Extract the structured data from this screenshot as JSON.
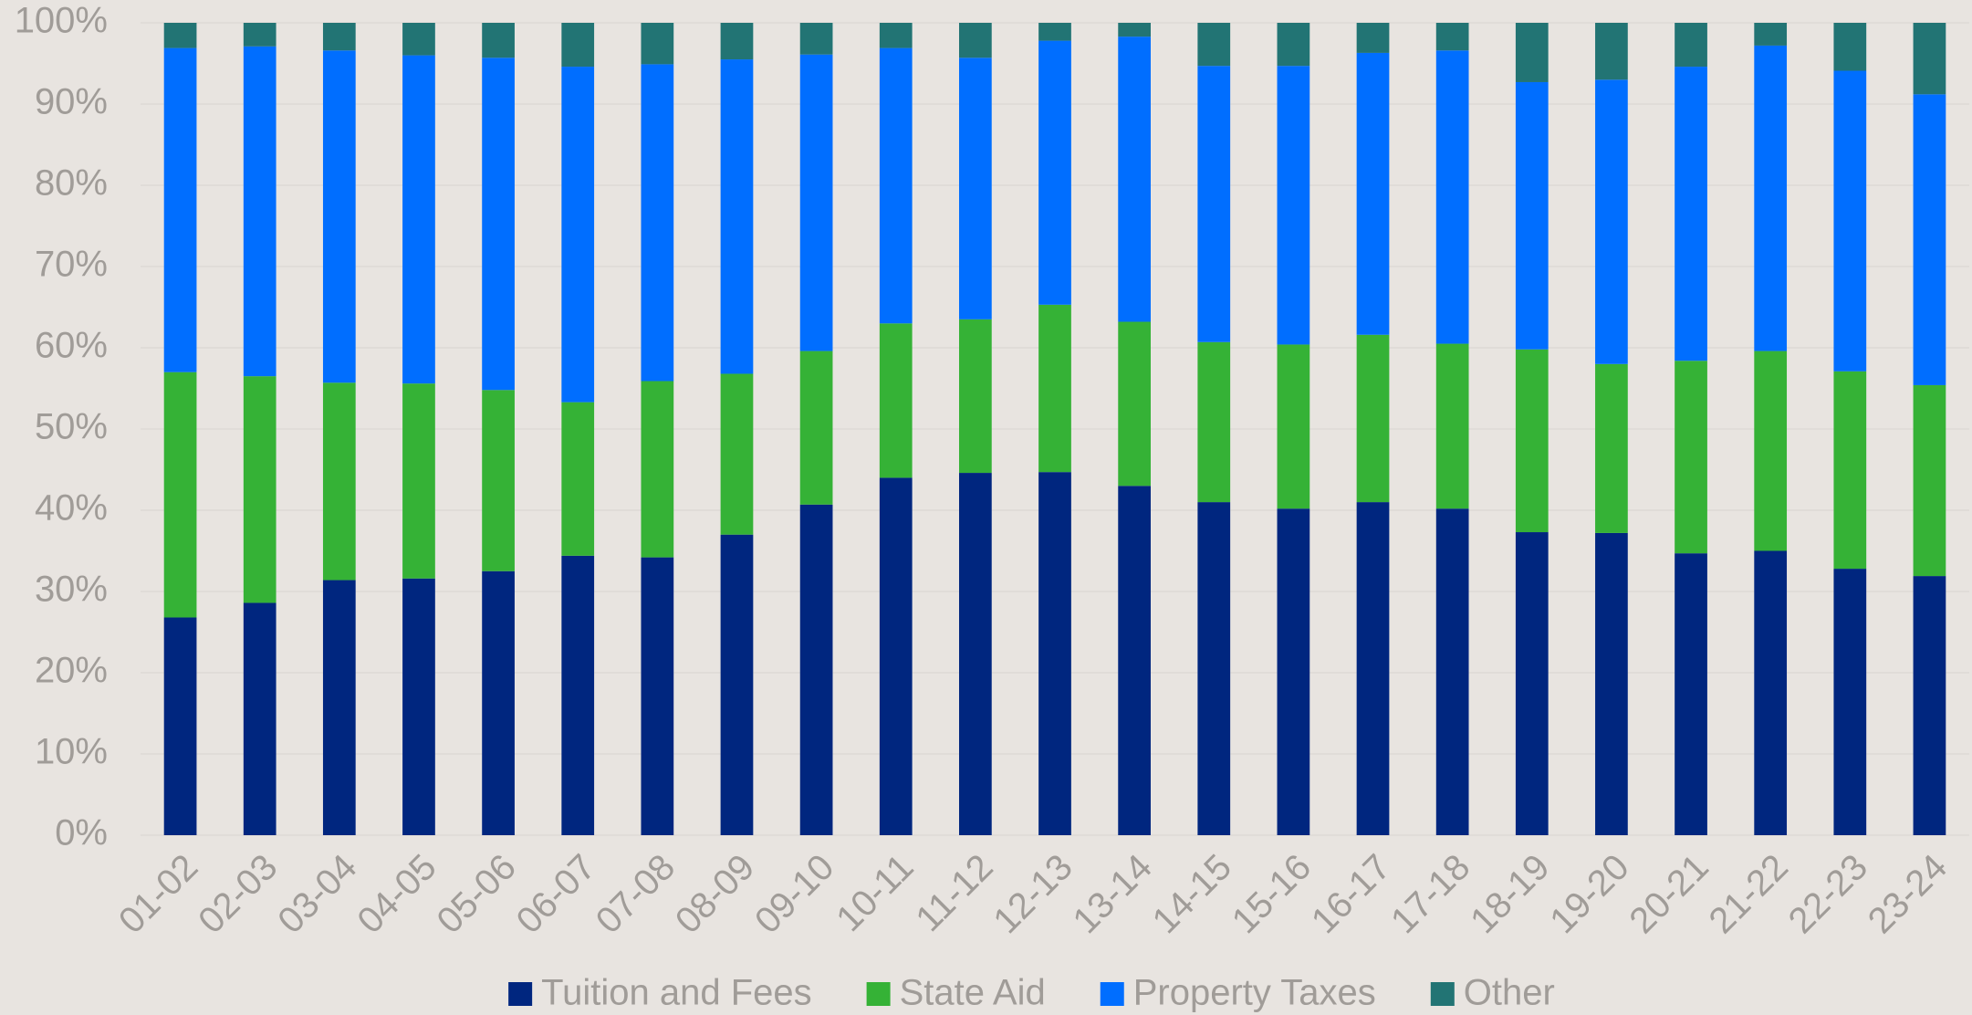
{
  "chart_data": {
    "type": "stacked_bar",
    "categories": [
      "01-02",
      "02-03",
      "03-04",
      "04-05",
      "05-06",
      "06-07",
      "07-08",
      "08-09",
      "09-10",
      "10-11",
      "11-12",
      "12-13",
      "13-14",
      "14-15",
      "15-16",
      "16-17",
      "17-18",
      "18-19",
      "19-20",
      "20-21",
      "21-22",
      "22-23",
      "23-24"
    ],
    "series": [
      {
        "name": "Tuition and Fees",
        "color": "#00267f",
        "values": [
          26.8,
          28.6,
          31.4,
          31.6,
          32.5,
          34.4,
          34.2,
          37.0,
          40.7,
          44.0,
          44.6,
          44.7,
          43.0,
          41.0,
          40.2,
          41.0,
          40.2,
          37.3,
          37.2,
          34.7,
          35.0,
          32.8,
          31.9
        ]
      },
      {
        "name": "State Aid",
        "color": "#35b236",
        "values": [
          30.2,
          27.9,
          24.3,
          24.0,
          22.3,
          18.9,
          21.7,
          19.8,
          18.9,
          19.0,
          18.9,
          20.6,
          20.2,
          19.7,
          20.2,
          20.6,
          20.3,
          22.5,
          20.8,
          23.7,
          24.6,
          24.3,
          23.5
        ]
      },
      {
        "name": "Property Taxes",
        "color": "#006eff",
        "values": [
          39.9,
          40.6,
          40.9,
          40.4,
          40.9,
          41.3,
          39.0,
          38.7,
          36.5,
          33.9,
          32.2,
          32.5,
          35.1,
          34.0,
          34.3,
          34.7,
          36.1,
          32.9,
          35.0,
          36.2,
          37.6,
          37.0,
          35.8
        ]
      },
      {
        "name": "Other",
        "color": "#227474",
        "values": [
          3.1,
          2.9,
          3.4,
          4.0,
          4.3,
          5.4,
          5.1,
          4.5,
          3.9,
          3.1,
          4.3,
          2.2,
          1.7,
          5.3,
          5.3,
          3.7,
          3.4,
          7.3,
          7.0,
          5.4,
          2.8,
          5.9,
          8.8
        ]
      }
    ],
    "ylim": [
      0,
      100
    ],
    "yticks": [
      {
        "value": 0,
        "label": "0%"
      },
      {
        "value": 10,
        "label": "10%"
      },
      {
        "value": 20,
        "label": "20%"
      },
      {
        "value": 30,
        "label": "30%"
      },
      {
        "value": 40,
        "label": "40%"
      },
      {
        "value": 50,
        "label": "50%"
      },
      {
        "value": 60,
        "label": "60%"
      },
      {
        "value": 70,
        "label": "70%"
      },
      {
        "value": 80,
        "label": "80%"
      },
      {
        "value": 90,
        "label": "90%"
      },
      {
        "value": 100,
        "label": "100%"
      }
    ],
    "grid": true,
    "legend": "bottom"
  }
}
